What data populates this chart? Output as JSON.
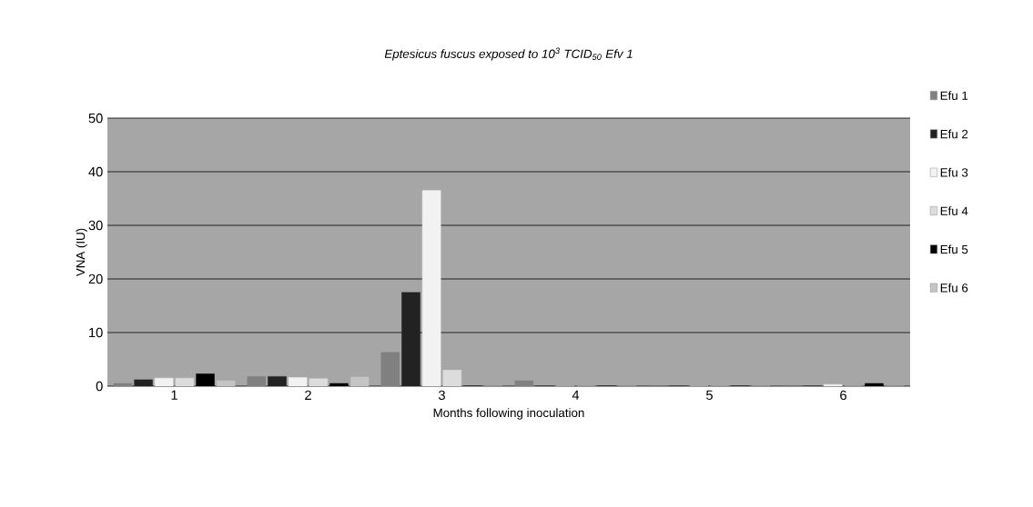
{
  "chart_data": {
    "type": "bar",
    "title": "*Eptesicus fuscus* exposed to 10$^{3}$ TCID$_{50}$ *Efv 1*",
    "xlabel": "Months following inoculation",
    "ylabel": "VNA (IU)",
    "categories": [
      "1",
      "2",
      "3",
      "4",
      "5",
      "6"
    ],
    "series": [
      {
        "name": "Efu 1",
        "color": "#808080",
        "values": [
          0.5,
          1.8,
          6.3,
          1.0,
          0,
          0
        ]
      },
      {
        "name": "Efu 2",
        "color": "#222222",
        "values": [
          1.2,
          1.8,
          17.5,
          0,
          0,
          0
        ]
      },
      {
        "name": "Efu 3",
        "color": "#f2f2f2",
        "values": [
          1.5,
          1.6,
          36.5,
          0,
          0,
          0.3
        ]
      },
      {
        "name": "Efu 4",
        "color": "#dcdcdc",
        "values": [
          1.5,
          1.4,
          3.0,
          0,
          0,
          0
        ]
      },
      {
        "name": "Efu 5",
        "color": "#000000",
        "values": [
          2.3,
          0.5,
          0,
          0,
          0,
          0.5
        ]
      },
      {
        "name": "Efu 6",
        "color": "#c4c4c4",
        "values": [
          1.0,
          1.7,
          0,
          0,
          0,
          0
        ]
      }
    ],
    "ylim": [
      0,
      50
    ],
    "yticks": [
      0,
      10,
      20,
      30,
      40,
      50
    ],
    "grid": "y",
    "legend": "right"
  }
}
